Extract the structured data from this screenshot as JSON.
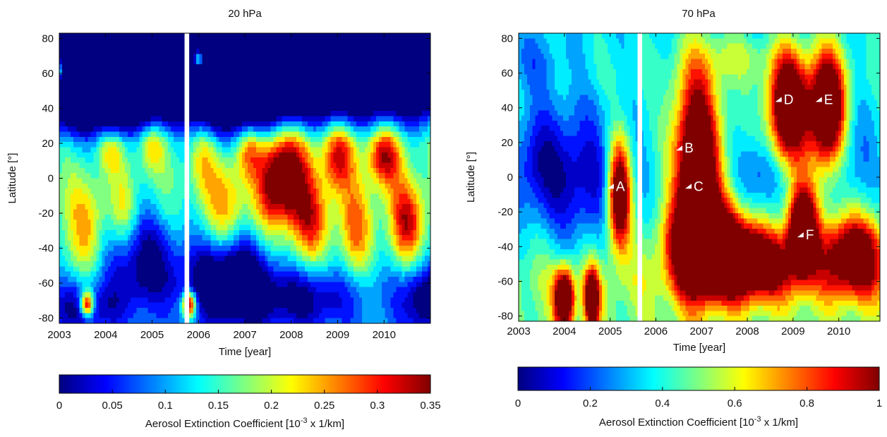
{
  "chart_data": [
    {
      "type": "heatmap",
      "title": "20 hPa",
      "xlabel": "Time [year]",
      "ylabel": "Latitude [°]",
      "xlim": [
        2003,
        2011
      ],
      "ylim": [
        -83,
        83
      ],
      "x_ticks": [
        "2003",
        "2004",
        "2005",
        "2006",
        "2007",
        "2008",
        "2009",
        "2010"
      ],
      "y_ticks": [
        "80",
        "60",
        "40",
        "20",
        "0",
        "-20",
        "-40",
        "-60",
        "-80"
      ],
      "data_gap": [
        2005.7,
        2005.8
      ],
      "colorbar": {
        "label_text": "Aerosol Extinction Coefficient [10",
        "label_sup": "-3",
        "label_tail": " x 1/km]",
        "min": 0,
        "max": 0.35,
        "ticks": [
          "0",
          "0.05",
          "0.1",
          "0.15",
          "0.2",
          "0.25",
          "0.3",
          "0.35"
        ]
      },
      "blobs": [
        {
          "x": 2003.4,
          "y": 60,
          "sx": 0.7,
          "sy": 22,
          "v": -0.9
        },
        {
          "x": 2004.4,
          "y": 62,
          "sx": 0.5,
          "sy": 18,
          "v": -0.8
        },
        {
          "x": 2005.2,
          "y": 62,
          "sx": 0.6,
          "sy": 18,
          "v": -0.7
        },
        {
          "x": 2006.5,
          "y": 58,
          "sx": 0.6,
          "sy": 22,
          "v": -0.7
        },
        {
          "x": 2007.5,
          "y": 58,
          "sx": 0.6,
          "sy": 20,
          "v": -0.6
        },
        {
          "x": 2008.6,
          "y": 62,
          "sx": 0.6,
          "sy": 18,
          "v": -0.6
        },
        {
          "x": 2009.6,
          "y": 62,
          "sx": 0.6,
          "sy": 18,
          "v": -0.6
        },
        {
          "x": 2010.7,
          "y": 62,
          "sx": 0.5,
          "sy": 18,
          "v": -0.6
        },
        {
          "x": 2004.8,
          "y": -45,
          "sx": 0.6,
          "sy": 20,
          "v": -0.4
        },
        {
          "x": 2006.7,
          "y": -58,
          "sx": 0.6,
          "sy": 18,
          "v": -0.6
        },
        {
          "x": 2008.3,
          "y": -70,
          "sx": 0.8,
          "sy": 12,
          "v": -0.3
        },
        {
          "x": 2003.5,
          "y": -75,
          "sx": 0.6,
          "sy": 10,
          "v": -0.3
        },
        {
          "x": 2010.9,
          "y": -70,
          "sx": 0.4,
          "sy": 14,
          "v": -0.4
        },
        {
          "x": 2003.6,
          "y": -30,
          "sx": 0.3,
          "sy": 20,
          "v": 0.28
        },
        {
          "x": 2004.1,
          "y": 15,
          "sx": 0.2,
          "sy": 8,
          "v": 0.22
        },
        {
          "x": 2004.4,
          "y": -20,
          "sx": 0.2,
          "sy": 16,
          "v": 0.2
        },
        {
          "x": 2005.0,
          "y": 18,
          "sx": 0.2,
          "sy": 10,
          "v": 0.22
        },
        {
          "x": 2006.1,
          "y": 10,
          "sx": 0.2,
          "sy": 14,
          "v": 0.2
        },
        {
          "x": 2006.6,
          "y": -15,
          "sx": 0.3,
          "sy": 20,
          "v": 0.28
        },
        {
          "x": 2007.1,
          "y": 15,
          "sx": 0.2,
          "sy": 10,
          "v": 0.3
        },
        {
          "x": 2007.9,
          "y": 2,
          "sx": 0.35,
          "sy": 18,
          "v": 0.65
        },
        {
          "x": 2008.4,
          "y": -25,
          "sx": 0.3,
          "sy": 16,
          "v": 0.38
        },
        {
          "x": 2009.0,
          "y": 12,
          "sx": 0.25,
          "sy": 14,
          "v": 0.45
        },
        {
          "x": 2009.4,
          "y": -30,
          "sx": 0.25,
          "sy": 18,
          "v": 0.32
        },
        {
          "x": 2010.0,
          "y": 12,
          "sx": 0.25,
          "sy": 12,
          "v": 0.5
        },
        {
          "x": 2010.5,
          "y": -25,
          "sx": 0.25,
          "sy": 16,
          "v": 0.48
        },
        {
          "x": 2007.6,
          "y": -5,
          "sx": 0.25,
          "sy": 18,
          "v": 0.25
        },
        {
          "x": 2003.0,
          "y": 62,
          "sx": 0.12,
          "sy": 6,
          "v": 1.0
        },
        {
          "x": 2006.0,
          "y": 68,
          "sx": 0.1,
          "sy": 5,
          "v": 1.0
        },
        {
          "x": 2003.6,
          "y": -72,
          "sx": 0.1,
          "sy": 5,
          "v": 0.8
        },
        {
          "x": 2005.8,
          "y": -72,
          "sx": 0.1,
          "sy": 5,
          "v": 0.8
        }
      ],
      "base_profile": [
        {
          "y": -83,
          "v": 0.12
        },
        {
          "y": -60,
          "v": 0.12
        },
        {
          "y": -40,
          "v": 0.16
        },
        {
          "y": -20,
          "v": 0.18
        },
        {
          "y": 0,
          "v": 0.18
        },
        {
          "y": 20,
          "v": 0.18
        },
        {
          "y": 35,
          "v": 0.12
        },
        {
          "y": 50,
          "v": 0.05
        },
        {
          "y": 83,
          "v": 0.02
        }
      ]
    },
    {
      "type": "heatmap",
      "title": "70 hPa",
      "xlabel": "Time [year]",
      "ylabel": "Latitude [°]",
      "xlim": [
        2003,
        2010.9
      ],
      "ylim": [
        -83,
        83
      ],
      "x_ticks": [
        "2003",
        "2004",
        "2005",
        "2006",
        "2007",
        "2008",
        "2009",
        "2010"
      ],
      "y_ticks": [
        "80",
        "60",
        "40",
        "20",
        "0",
        "-20",
        "-40",
        "-60",
        "-80"
      ],
      "data_gap": [
        2005.6,
        2005.7
      ],
      "colorbar": {
        "label_text": "Aerosol Extinction Coefficient [10",
        "label_sup": "-3",
        "label_tail": " x 1/km]",
        "min": 0,
        "max": 1,
        "ticks": [
          "0",
          "0.2",
          "0.4",
          "0.6",
          "0.8",
          "1"
        ]
      },
      "annotations": [
        {
          "label": "A",
          "x": 2005.05,
          "y": -5
        },
        {
          "label": "B",
          "x": 2006.55,
          "y": 17
        },
        {
          "label": "C",
          "x": 2006.75,
          "y": -5
        },
        {
          "label": "D",
          "x": 2008.72,
          "y": 45
        },
        {
          "label": "E",
          "x": 2009.6,
          "y": 45
        },
        {
          "label": "F",
          "x": 2009.2,
          "y": -33
        }
      ],
      "blobs": [
        {
          "x": 2005.2,
          "y": -10,
          "sx": 0.18,
          "sy": 22,
          "v": 0.95
        },
        {
          "x": 2006.9,
          "y": 5,
          "sx": 0.35,
          "sy": 40,
          "v": 1.0
        },
        {
          "x": 2007.2,
          "y": -40,
          "sx": 0.6,
          "sy": 18,
          "v": 1.0
        },
        {
          "x": 2008.9,
          "y": 40,
          "sx": 0.3,
          "sy": 22,
          "v": 1.0
        },
        {
          "x": 2009.75,
          "y": 38,
          "sx": 0.28,
          "sy": 24,
          "v": 1.0
        },
        {
          "x": 2009.2,
          "y": -30,
          "sx": 0.22,
          "sy": 18,
          "v": 1.0
        },
        {
          "x": 2010.3,
          "y": -45,
          "sx": 0.5,
          "sy": 16,
          "v": 0.8
        },
        {
          "x": 2008.2,
          "y": -50,
          "sx": 0.6,
          "sy": 14,
          "v": 0.7
        },
        {
          "x": 2004.3,
          "y": 0,
          "sx": 0.7,
          "sy": 30,
          "v": -0.3
        },
        {
          "x": 2003.4,
          "y": 10,
          "sx": 0.4,
          "sy": 20,
          "v": -0.2
        },
        {
          "x": 2008.3,
          "y": 0,
          "sx": 0.35,
          "sy": 16,
          "v": -0.2
        },
        {
          "x": 2010.2,
          "y": 15,
          "sx": 0.4,
          "sy": 20,
          "v": -0.15
        },
        {
          "x": 2004.0,
          "y": -70,
          "sx": 0.15,
          "sy": 12,
          "v": 0.9
        },
        {
          "x": 2004.6,
          "y": -70,
          "sx": 0.12,
          "sy": 12,
          "v": 0.8
        },
        {
          "x": 2003.3,
          "y": 65,
          "sx": 0.5,
          "sy": 12,
          "v": -0.15
        },
        {
          "x": 2007.8,
          "y": 70,
          "sx": 0.5,
          "sy": 10,
          "v": 0.15
        }
      ],
      "base_profile": [
        {
          "y": -83,
          "v": 0.55
        },
        {
          "y": -60,
          "v": 0.6
        },
        {
          "y": -40,
          "v": 0.5
        },
        {
          "y": -20,
          "v": 0.42
        },
        {
          "y": 0,
          "v": 0.4
        },
        {
          "y": 20,
          "v": 0.42
        },
        {
          "y": 40,
          "v": 0.42
        },
        {
          "y": 60,
          "v": 0.45
        },
        {
          "y": 83,
          "v": 0.4
        }
      ]
    }
  ]
}
